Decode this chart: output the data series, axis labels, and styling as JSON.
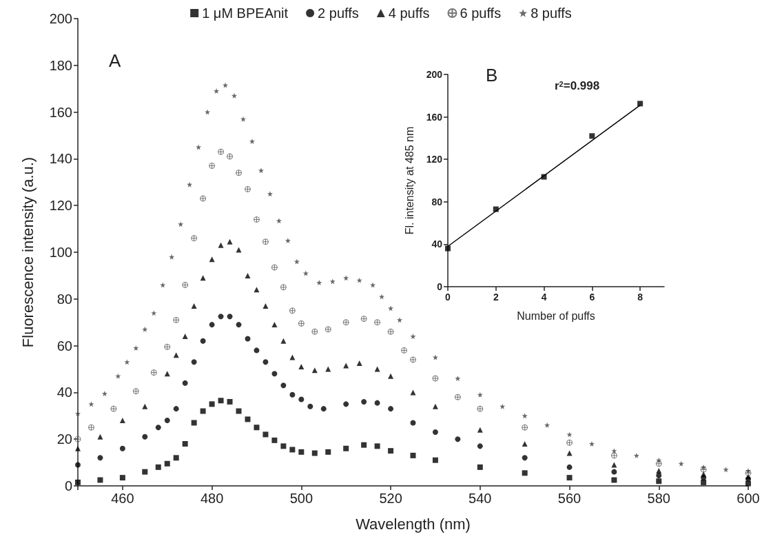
{
  "chart_data": [
    {
      "type": "scatter",
      "xlabel": "Wavelength (nm)",
      "ylabel": "Fluorescence intensity (a.u.)",
      "xlim": [
        450,
        600
      ],
      "ylim": [
        0,
        200
      ],
      "xticks": [
        {
          "value": 450,
          "label": null
        },
        460,
        480,
        500,
        520,
        540,
        560,
        580,
        600
      ],
      "yticks": [
        0,
        20,
        40,
        60,
        80,
        100,
        120,
        140,
        160,
        180,
        200
      ],
      "legend": "top",
      "annotations": [
        "A"
      ],
      "series": [
        {
          "name": "1 μM BPEAnit",
          "color": "#000000",
          "marker": "square",
          "x": [
            450,
            455,
            460,
            465,
            468,
            470,
            472,
            474,
            476,
            478,
            480,
            482,
            484,
            486,
            488,
            490,
            492,
            494,
            496,
            498,
            500,
            503,
            506,
            510,
            514,
            517,
            520,
            525,
            530,
            540,
            550,
            560,
            570,
            580,
            590,
            600
          ],
          "values": [
            1.5,
            2.5,
            3.5,
            6,
            8,
            9.5,
            12,
            18,
            27,
            32,
            35,
            36.5,
            36,
            32,
            28.5,
            25,
            22,
            19.5,
            17,
            15.5,
            14.5,
            14,
            14.5,
            16,
            17.5,
            17,
            15,
            13,
            11,
            8,
            5.5,
            3.5,
            2.5,
            2,
            1.5,
            1
          ]
        },
        {
          "name": "2 puffs",
          "color": "#000000",
          "marker": "circle",
          "x": [
            450,
            455,
            460,
            465,
            468,
            470,
            472,
            474,
            476,
            478,
            480,
            482,
            484,
            486,
            488,
            490,
            492,
            494,
            496,
            498,
            500,
            502,
            505,
            510,
            514,
            517,
            520,
            525,
            530,
            535,
            540,
            550,
            560,
            570,
            580,
            590,
            600
          ],
          "values": [
            9,
            12,
            16,
            21,
            25,
            28,
            33,
            44,
            53,
            62,
            69,
            72.5,
            72.5,
            69,
            63,
            58,
            53,
            48,
            43,
            39,
            37,
            34,
            33,
            35,
            36,
            35.5,
            33,
            27,
            23,
            20,
            17,
            12,
            8,
            6,
            4.4,
            3.5,
            3
          ]
        },
        {
          "name": "4 puffs",
          "color": "#000000",
          "marker": "triangle",
          "x": [
            450,
            455,
            460,
            465,
            470,
            472,
            474,
            476,
            478,
            480,
            482,
            484,
            486,
            488,
            490,
            492,
            494,
            496,
            498,
            500,
            503,
            506,
            510,
            513,
            517,
            520,
            525,
            530,
            540,
            550,
            560,
            570,
            580,
            590,
            600
          ],
          "values": [
            16,
            21,
            28,
            34,
            48,
            56,
            64,
            77,
            89,
            97,
            103,
            104.5,
            101,
            90,
            84,
            77,
            69,
            62,
            55,
            51,
            49.5,
            50,
            51.5,
            52.5,
            50,
            47,
            40,
            34,
            24,
            18,
            14,
            9,
            6.5,
            5,
            4
          ]
        },
        {
          "name": "6 puffs",
          "color": "#555555",
          "marker": "cross",
          "x": [
            450,
            453,
            458,
            463,
            467,
            470,
            472,
            474,
            476,
            478,
            480,
            482,
            484,
            486,
            488,
            490,
            492,
            494,
            496,
            498,
            500,
            503,
            506,
            510,
            514,
            517,
            520,
            523,
            525,
            530,
            535,
            540,
            550,
            560,
            570,
            580,
            590,
            600
          ],
          "values": [
            20,
            25,
            33,
            40.5,
            48.5,
            59.5,
            71,
            86,
            106,
            123,
            137,
            143,
            141,
            134,
            127,
            114,
            104.5,
            93.5,
            85,
            75,
            69.5,
            66,
            67,
            70,
            71.5,
            70,
            66,
            58,
            54,
            46,
            38,
            33,
            25,
            18.5,
            13,
            9.5,
            7,
            5.5
          ]
        },
        {
          "name": "8 puffs",
          "color": "#444444",
          "marker": "star",
          "x": [
            450,
            453,
            456,
            459,
            461,
            463,
            465,
            467,
            469,
            471,
            473,
            475,
            477,
            479,
            481,
            483,
            485,
            487,
            489,
            491,
            493,
            495,
            497,
            499,
            501,
            504,
            507,
            510,
            513,
            516,
            518,
            520,
            522,
            525,
            530,
            535,
            540,
            545,
            550,
            555,
            560,
            565,
            570,
            575,
            580,
            585,
            590,
            595,
            600
          ],
          "values": [
            31,
            35,
            39.5,
            47,
            53,
            59,
            67,
            74,
            86,
            98,
            112,
            129,
            145,
            160,
            169,
            171.5,
            167,
            157,
            147.5,
            135,
            125,
            113.5,
            105,
            96,
            91,
            87,
            87.5,
            89,
            88,
            86,
            81,
            76,
            71,
            64,
            55,
            46,
            39,
            34,
            30,
            26,
            22,
            18,
            15,
            13,
            11,
            9.5,
            8,
            7,
            6.5
          ]
        }
      ]
    },
    {
      "type": "scatter",
      "xlabel": "Number of puffs",
      "ylabel": "Fl. intensity at 485 nm",
      "xlim": [
        0,
        9
      ],
      "ylim": [
        0,
        200
      ],
      "xticks": [
        0,
        2,
        4,
        6,
        8
      ],
      "yticks": [
        0,
        40,
        80,
        120,
        160,
        200
      ],
      "annotations": [
        "B",
        "r$^{2}$=0.998"
      ],
      "series": [
        {
          "color": "#000000",
          "marker": "square",
          "x": [
            0,
            2,
            4,
            6,
            8
          ],
          "values": [
            36,
            73,
            103.5,
            142,
            172.5
          ]
        },
        {
          "type": "line",
          "color": "#000000",
          "marker": "none",
          "x": [
            0,
            8
          ],
          "values": [
            38,
            171
          ]
        }
      ]
    }
  ]
}
